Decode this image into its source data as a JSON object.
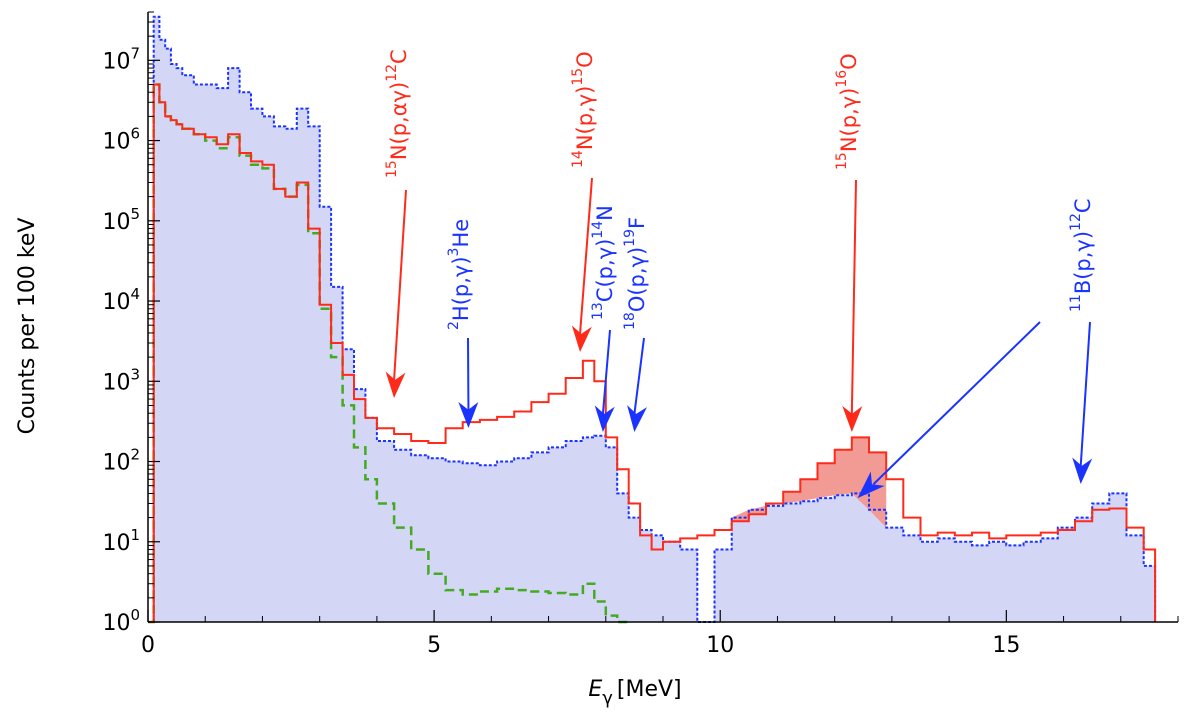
{
  "chart_data": {
    "type": "line",
    "title": "",
    "xlabel": "E",
    "xlabel_sub": "γ",
    "xlabel_unit": "[MeV]",
    "ylabel": "Counts per 100 keV",
    "xlim": [
      0,
      18
    ],
    "ylim": [
      1,
      40000000
    ],
    "yscale": "log",
    "grid": false,
    "x_ticks": [
      0,
      5,
      10,
      15
    ],
    "x_tick_labels": [
      "0",
      "5",
      "10",
      "15"
    ],
    "y_ticks": [
      1,
      10,
      100,
      1000,
      10000,
      100000,
      1000000,
      10000000
    ],
    "y_tick_base": "10",
    "y_tick_exponents": [
      "0",
      "1",
      "2",
      "3",
      "4",
      "5",
      "6",
      "7"
    ],
    "colors": {
      "red": "#ff2a1a",
      "blue": "#1a33ff",
      "green": "#44aa22",
      "fill_blue": "#d4d6f5",
      "fill_red": "#f29a94",
      "arrow_red": "#ff2a1a",
      "arrow_blue": "#1a33ff"
    },
    "series": [
      {
        "color": "red",
        "style": "solid-step",
        "x": [
          0.0,
          0.1,
          0.2,
          0.3,
          0.4,
          0.5,
          0.6,
          0.8,
          1.0,
          1.2,
          1.4,
          1.6,
          1.8,
          2.0,
          2.2,
          2.4,
          2.6,
          2.8,
          3.0,
          3.2,
          3.4,
          3.6,
          3.8,
          4.0,
          4.3,
          4.6,
          4.9,
          5.2,
          5.5,
          5.8,
          6.1,
          6.4,
          6.7,
          7.0,
          7.3,
          7.6,
          7.8,
          8.0,
          8.2,
          8.4,
          8.6,
          8.8,
          9.0,
          9.3,
          9.6,
          9.9,
          10.2,
          10.5,
          10.8,
          11.1,
          11.4,
          11.7,
          12.0,
          12.3,
          12.6,
          12.9,
          13.2,
          13.5,
          13.8,
          14.1,
          14.4,
          14.7,
          15.0,
          15.3,
          15.6,
          15.9,
          16.2,
          16.5,
          16.8,
          17.1,
          17.4,
          17.6
        ],
        "y": [
          1,
          5000000,
          3000000,
          2000000,
          1800000,
          1600000,
          1400000,
          1200000,
          1100000,
          900000,
          1200000,
          700000,
          550000,
          500000,
          250000,
          200000,
          300000,
          80000,
          9000,
          3000,
          1200,
          600,
          350,
          260,
          220,
          180,
          170,
          260,
          310,
          330,
          360,
          420,
          550,
          700,
          1100,
          1800,
          1000,
          200,
          80,
          30,
          12,
          8,
          10,
          11,
          12,
          14,
          18,
          22,
          30,
          42,
          60,
          95,
          140,
          200,
          130,
          60,
          20,
          12,
          13,
          12,
          13,
          11,
          12,
          12,
          13,
          14,
          18,
          25,
          26,
          15,
          8,
          1
        ]
      },
      {
        "color": "blue",
        "style": "dotted-step-filled",
        "x": [
          0.0,
          0.1,
          0.2,
          0.3,
          0.4,
          0.5,
          0.6,
          0.8,
          1.0,
          1.2,
          1.4,
          1.6,
          1.8,
          2.0,
          2.2,
          2.4,
          2.6,
          2.8,
          3.0,
          3.2,
          3.4,
          3.6,
          3.8,
          4.0,
          4.3,
          4.6,
          4.9,
          5.2,
          5.5,
          5.8,
          6.1,
          6.4,
          6.7,
          7.0,
          7.3,
          7.6,
          7.8,
          8.0,
          8.2,
          8.4,
          8.6,
          8.8,
          9.0,
          9.3,
          9.6,
          9.9,
          10.2,
          10.5,
          10.8,
          11.1,
          11.4,
          11.7,
          12.0,
          12.3,
          12.6,
          12.9,
          13.2,
          13.5,
          13.8,
          14.1,
          14.4,
          14.7,
          15.0,
          15.3,
          15.6,
          15.9,
          16.2,
          16.5,
          16.8,
          17.1,
          17.4,
          17.6
        ],
        "y": [
          1,
          35000000,
          18000000,
          14000000,
          9000000,
          8000000,
          6500000,
          5000000,
          5000000,
          4500000,
          8000000,
          4000000,
          2500000,
          2000000,
          1500000,
          1400000,
          2500000,
          1500000,
          150000,
          15000,
          2500,
          800,
          350,
          180,
          140,
          120,
          110,
          100,
          95,
          90,
          100,
          110,
          130,
          150,
          180,
          200,
          210,
          150,
          40,
          20,
          14,
          12,
          10,
          8,
          1,
          8,
          20,
          25,
          28,
          30,
          32,
          35,
          38,
          40,
          25,
          15,
          12,
          10,
          11,
          10,
          9,
          10,
          9,
          10,
          11,
          15,
          20,
          30,
          40,
          12,
          5,
          1
        ]
      },
      {
        "color": "green",
        "style": "dashed",
        "x": [
          0.0,
          0.1,
          0.2,
          0.3,
          0.4,
          0.5,
          0.6,
          0.8,
          1.0,
          1.2,
          1.4,
          1.6,
          1.8,
          2.0,
          2.2,
          2.4,
          2.6,
          2.8,
          3.0,
          3.2,
          3.4,
          3.6,
          3.8,
          4.0,
          4.3,
          4.6,
          4.9,
          5.2,
          5.5,
          5.8,
          6.1,
          6.4,
          6.7,
          7.0,
          7.3,
          7.6,
          7.8,
          8.0,
          8.2,
          8.4
        ],
        "y": [
          1,
          5000000,
          3000000,
          2000000,
          1800000,
          1600000,
          1400000,
          1200000,
          1000000,
          800000,
          1100000,
          650000,
          500000,
          450000,
          250000,
          200000,
          280000,
          70000,
          8000,
          2000,
          500,
          150,
          60,
          30,
          15,
          8,
          4,
          2.5,
          2.2,
          2.4,
          2.6,
          2.5,
          2.4,
          2.3,
          2.2,
          3.0,
          1.8,
          1.2,
          1.0,
          1.0
        ]
      }
    ],
    "annotations": [
      {
        "color": "red",
        "pre": "15",
        "body": "N(p,αγ)",
        "post": "12",
        "tail": "C",
        "x": 4.3,
        "y": 220
      },
      {
        "color": "blue",
        "pre": "2",
        "body": "H(p,γ)",
        "post": "3",
        "tail": "He",
        "x": 5.6,
        "y": 110
      },
      {
        "color": "red",
        "pre": "14",
        "body": "N(p,γ)",
        "post": "15",
        "tail": "O",
        "x": 7.6,
        "y": 1800
      },
      {
        "color": "blue",
        "pre": "13",
        "body": "C(p,γ)",
        "post": "14",
        "tail": "N",
        "x": 7.9,
        "y": 200
      },
      {
        "color": "blue",
        "pre": "18",
        "body": "O(p,γ)",
        "post": "19",
        "tail": "F",
        "x": 8.5,
        "y": 180
      },
      {
        "color": "red",
        "pre": "15",
        "body": "N(p,γ)",
        "post": "16",
        "tail": "O",
        "x": 12.3,
        "y": 200
      },
      {
        "color": "blue",
        "pre": "11",
        "body": "B(p,γ)",
        "post": "12",
        "tail": "C",
        "x": 16.3,
        "y": 30
      }
    ]
  }
}
